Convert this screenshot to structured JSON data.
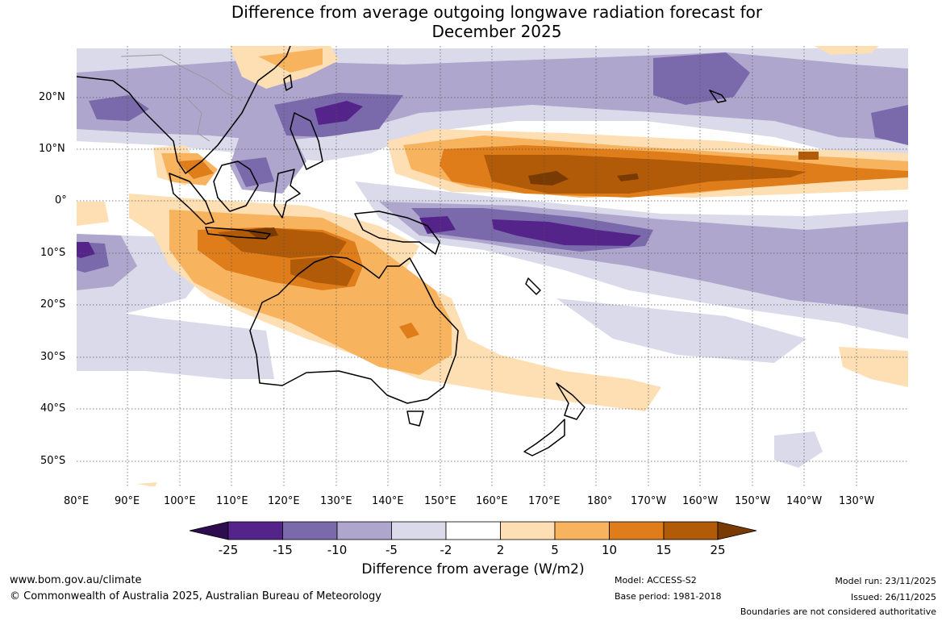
{
  "title": {
    "line1": "Difference from average outgoing longwave radiation forecast for",
    "line2": "December 2025"
  },
  "map": {
    "latitude_labels": [
      "20°N",
      "10°N",
      "0°",
      "10°S",
      "20°S",
      "30°S",
      "40°S",
      "50°S"
    ],
    "longitude_labels": [
      "80°E",
      "90°E",
      "100°E",
      "110°E",
      "120°E",
      "130°E",
      "140°E",
      "150°E",
      "160°E",
      "170°E",
      "180°",
      "170°W",
      "160°W",
      "150°W",
      "140°W",
      "130°W"
    ]
  },
  "legend": {
    "title": "Difference from average (W/m2)",
    "tick_labels": [
      "-25",
      "-15",
      "-10",
      "-5",
      "-2",
      "2",
      "5",
      "10",
      "15",
      "25"
    ],
    "colors": {
      "lt_-25": "#2d0d4f",
      "-25_-15": "#55248a",
      "-15_-10": "#7b6aab",
      "-10_-5": "#aea6cd",
      "-5_-2": "#dadaea",
      "-2_2": "#ffffff",
      "2_5": "#fddfb3",
      "5_10": "#f8b35e",
      "10_15": "#df7d1a",
      "15_25": "#b15a07",
      "gt_25": "#7a3a04"
    }
  },
  "footer": {
    "website": "www.bom.gov.au/climate",
    "copyright": "© Commonwealth of Australia 2025, Australian Bureau of Meteorology",
    "model": "Model: ACCESS-S2",
    "base_period": "Base period: 1981-2018",
    "model_run": "Model run: 23/11/2025",
    "issued": "Issued: 26/11/2025",
    "disclaimer": "Boundaries are not considered authoritative"
  }
}
